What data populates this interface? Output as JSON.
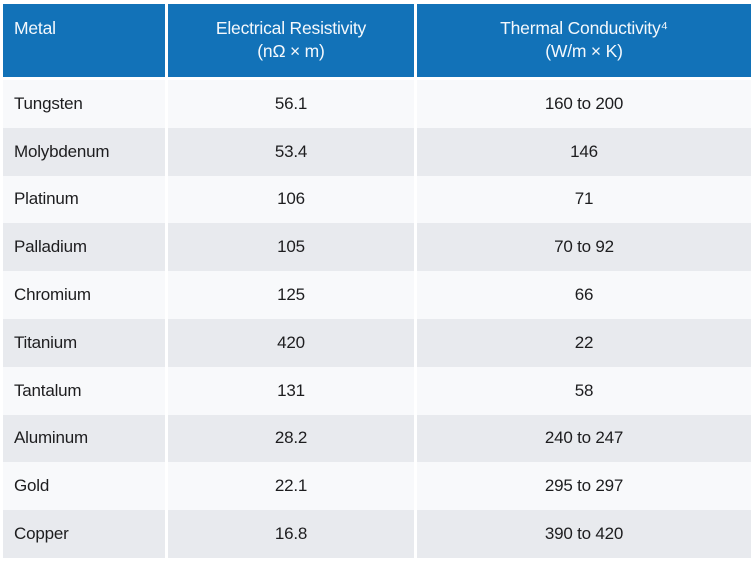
{
  "colors": {
    "header_bg": "#1272b8",
    "header_text": "#f4f8fc",
    "row_light_bg": "#f8f9fb",
    "row_dark_bg": "#e8eaee",
    "body_text": "#1d1d1f",
    "column_gap": "#ffffff"
  },
  "table": {
    "columns": [
      {
        "label": "Metal",
        "sublabel": ""
      },
      {
        "label": "Electrical Resistivity",
        "sublabel": "(nΩ × m)"
      },
      {
        "label": "Thermal Conductivity⁴",
        "sublabel": "(W/m × K)"
      }
    ],
    "rows": [
      {
        "metal": "Tungsten",
        "resistivity": "56.1",
        "conductivity": "160 to 200"
      },
      {
        "metal": "Molybdenum",
        "resistivity": "53.4",
        "conductivity": "146"
      },
      {
        "metal": "Platinum",
        "resistivity": "106",
        "conductivity": "71"
      },
      {
        "metal": "Palladium",
        "resistivity": "105",
        "conductivity": "70 to 92"
      },
      {
        "metal": "Chromium",
        "resistivity": "125",
        "conductivity": "66"
      },
      {
        "metal": "Titanium",
        "resistivity": "420",
        "conductivity": "22"
      },
      {
        "metal": "Tantalum",
        "resistivity": "131",
        "conductivity": "58"
      },
      {
        "metal": "Aluminum",
        "resistivity": "28.2",
        "conductivity": "240 to 247"
      },
      {
        "metal": "Gold",
        "resistivity": "22.1",
        "conductivity": "295 to 297"
      },
      {
        "metal": "Copper",
        "resistivity": "16.8",
        "conductivity": "390 to 420"
      }
    ]
  }
}
